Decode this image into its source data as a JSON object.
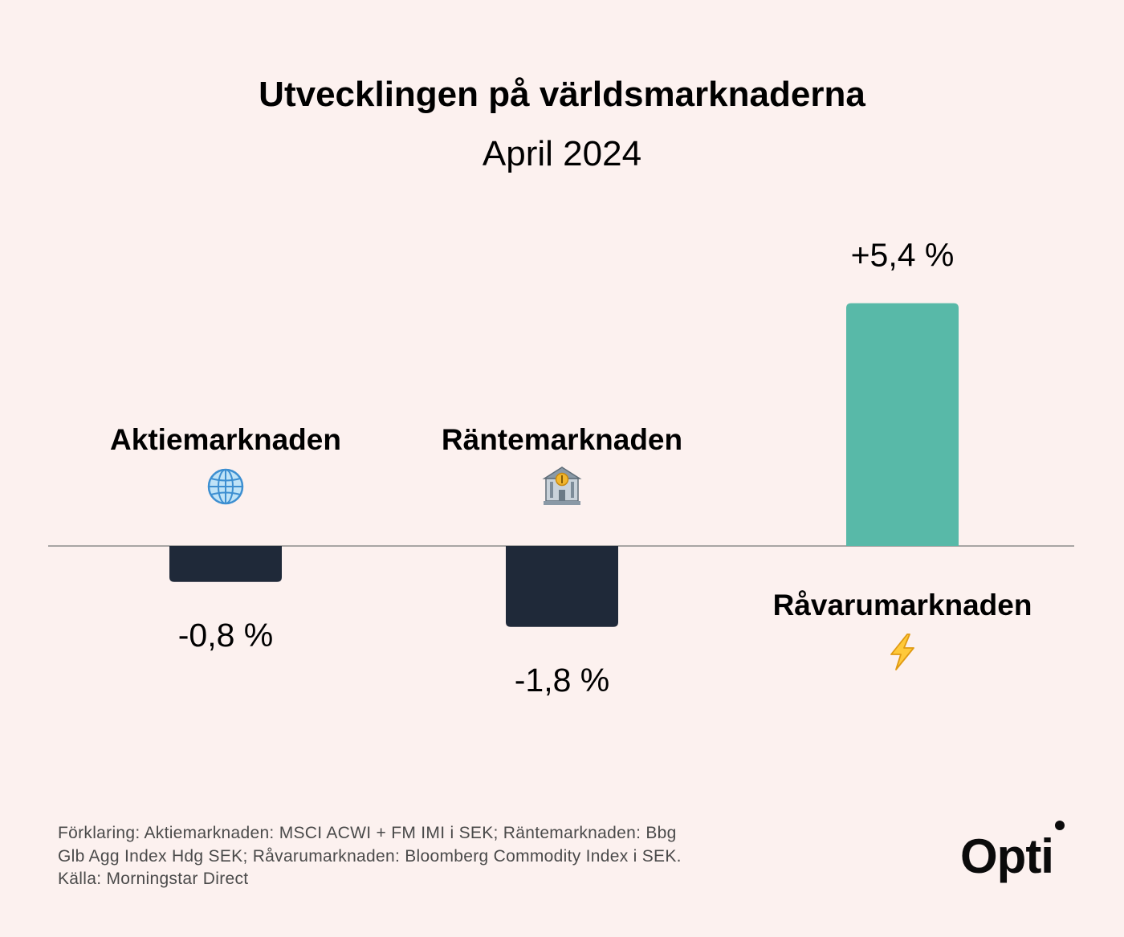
{
  "chart_data": {
    "type": "bar",
    "title": "Utvecklingen på världsmarknaderna",
    "subtitle": "April 2024",
    "categories": [
      "Aktiemarknaden",
      "Räntemarknaden",
      "Råvarumarknaden"
    ],
    "values": [
      -0.8,
      -1.8,
      5.4
    ],
    "value_labels": [
      "-0,8 %",
      "-1,8 %",
      "+5,4 %"
    ],
    "icons": [
      "globe-icon",
      "bank-icon",
      "lightning-icon"
    ],
    "colors": [
      "#1f2939",
      "#1f2939",
      "#58b9a8"
    ],
    "unit": "%",
    "ylim": [
      -3.6,
      6.5
    ],
    "grid": false,
    "xlabel": "",
    "ylabel": ""
  },
  "footnote": {
    "line1": "Förklaring: Aktiemarknaden: MSCI ACWI + FM IMI i SEK; Räntemarknaden: Bbg",
    "line2": "Glb Agg Index Hdg SEK; Råvarumarknaden: Bloomberg Commodity Index i SEK.",
    "line3": "Källa: Morningstar Direct"
  },
  "brand": {
    "logo_text": "Opti",
    "background_color": "#fcf1ef",
    "axis_color": "#8c8c8c"
  }
}
